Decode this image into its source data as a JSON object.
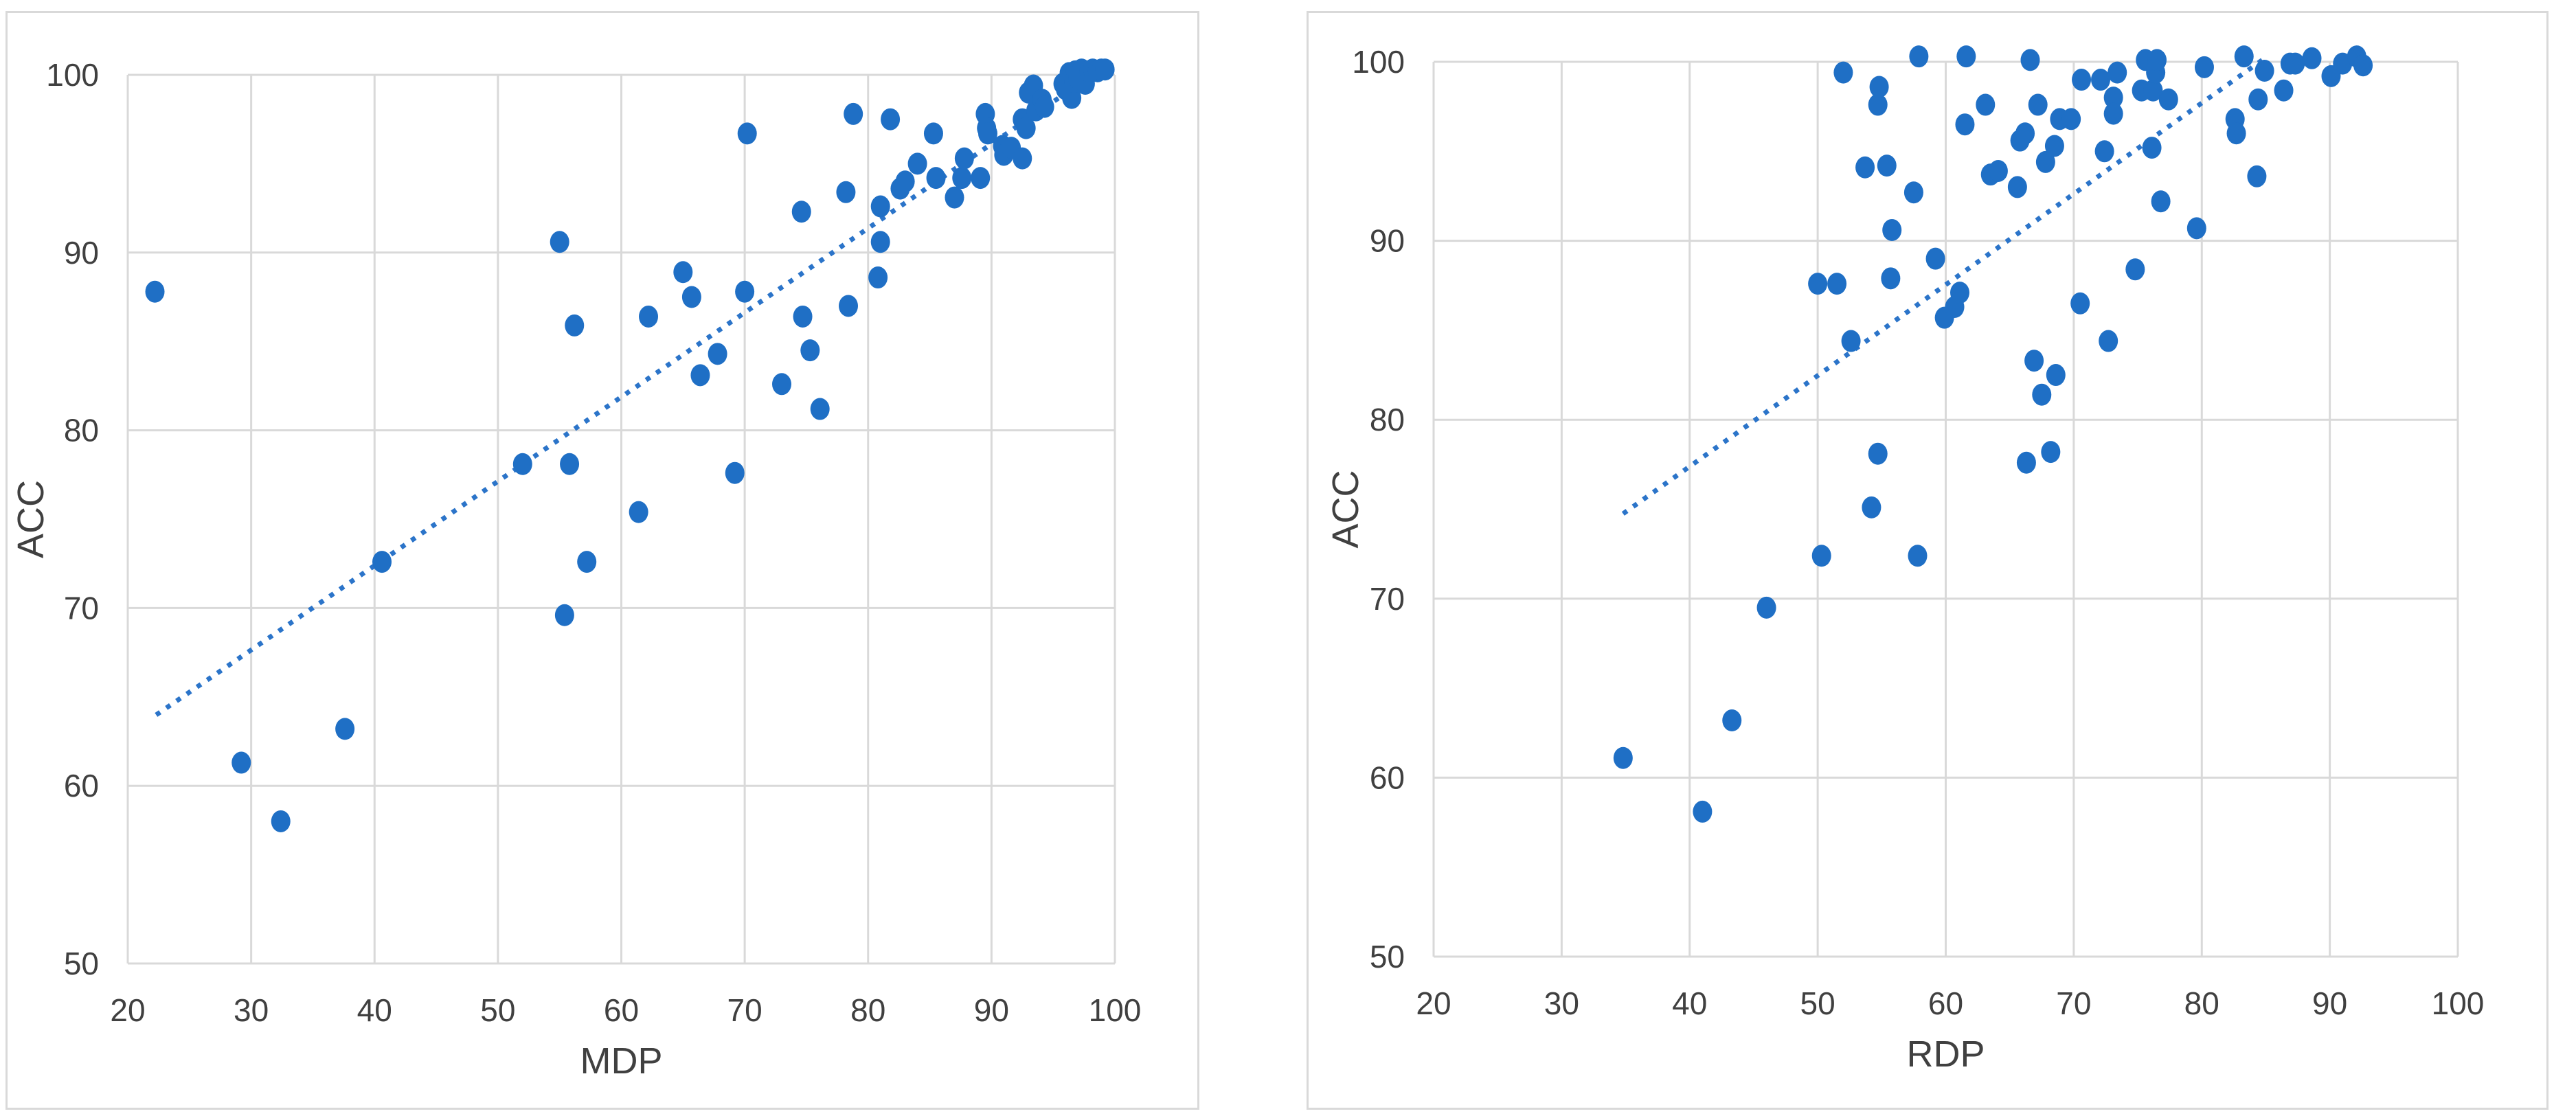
{
  "colors": {
    "marker": "#1f6fc5",
    "trendline": "#2b74c9",
    "grid": "#d9d9d9",
    "text": "#404040"
  },
  "chart_data": [
    {
      "type": "scatter",
      "title": "",
      "xlabel": "MDP",
      "ylabel": "ACC",
      "xlim": [
        20,
        100
      ],
      "ylim": [
        50,
        100
      ],
      "xticks": [
        "20",
        "30",
        "40",
        "50",
        "60",
        "70",
        "80",
        "90",
        "100"
      ],
      "yticks": [
        "50",
        "60",
        "70",
        "80",
        "90",
        "100"
      ],
      "grid": true,
      "legend": "none",
      "trendline": {
        "type": "linear",
        "style": "dotted",
        "x_range": [
          22.3,
          99.4
        ]
      },
      "points": [
        [
          22.2,
          87.8
        ],
        [
          29.2,
          61.3
        ],
        [
          32.4,
          58.0
        ],
        [
          37.6,
          63.2
        ],
        [
          40.6,
          72.6
        ],
        [
          52.0,
          78.1
        ],
        [
          55.0,
          90.6
        ],
        [
          55.4,
          69.6
        ],
        [
          55.8,
          78.1
        ],
        [
          56.2,
          85.9
        ],
        [
          57.2,
          72.6
        ],
        [
          61.4,
          75.4
        ],
        [
          62.2,
          86.4
        ],
        [
          65.0,
          88.9
        ],
        [
          65.7,
          87.5
        ],
        [
          66.4,
          83.1
        ],
        [
          67.8,
          84.3
        ],
        [
          69.2,
          77.6
        ],
        [
          70.0,
          87.8
        ],
        [
          70.2,
          96.7
        ],
        [
          73.0,
          82.6
        ],
        [
          74.6,
          92.3
        ],
        [
          74.7,
          86.4
        ],
        [
          75.3,
          84.5
        ],
        [
          76.1,
          81.2
        ],
        [
          78.2,
          93.4
        ],
        [
          78.4,
          87.0
        ],
        [
          78.8,
          97.8
        ],
        [
          80.8,
          88.6
        ],
        [
          81.0,
          92.6
        ],
        [
          81.0,
          90.6
        ],
        [
          81.8,
          97.5
        ],
        [
          82.6,
          93.6
        ],
        [
          83.0,
          94.0
        ],
        [
          84.0,
          95.0
        ],
        [
          85.3,
          96.7
        ],
        [
          85.5,
          94.2
        ],
        [
          87.0,
          93.1
        ],
        [
          87.6,
          94.2
        ],
        [
          87.8,
          95.3
        ],
        [
          89.1,
          94.2
        ],
        [
          89.5,
          97.8
        ],
        [
          89.6,
          97.0
        ],
        [
          89.7,
          96.7
        ],
        [
          90.9,
          96.0
        ],
        [
          91.0,
          95.5
        ],
        [
          91.6,
          95.9
        ],
        [
          92.5,
          95.3
        ],
        [
          92.5,
          97.5
        ],
        [
          92.8,
          97.0
        ],
        [
          93.0,
          99.0
        ],
        [
          93.4,
          99.4
        ],
        [
          93.6,
          98.0
        ],
        [
          94.1,
          98.6
        ],
        [
          94.3,
          98.2
        ],
        [
          95.8,
          99.5
        ],
        [
          96.0,
          99.2
        ],
        [
          96.3,
          100.1
        ],
        [
          96.5,
          98.7
        ],
        [
          96.7,
          99.6
        ],
        [
          96.8,
          100.2
        ],
        [
          97.0,
          99.8
        ],
        [
          97.3,
          100.3
        ],
        [
          97.6,
          99.5
        ],
        [
          97.9,
          100.2
        ],
        [
          98.2,
          100.3
        ],
        [
          98.6,
          100.2
        ],
        [
          98.9,
          100.3
        ],
        [
          99.2,
          100.3
        ]
      ]
    },
    {
      "type": "scatter",
      "title": "",
      "xlabel": "RDP",
      "ylabel": "ACC",
      "xlim": [
        20,
        100
      ],
      "ylim": [
        50,
        100
      ],
      "xticks": [
        "20",
        "30",
        "40",
        "50",
        "60",
        "70",
        "80",
        "90",
        "100"
      ],
      "yticks": [
        "50",
        "60",
        "70",
        "80",
        "90",
        "100"
      ],
      "grid": true,
      "legend": "none",
      "trendline": {
        "type": "linear",
        "style": "dotted",
        "x_range": [
          34.8,
          85.0
        ]
      },
      "points": [
        [
          34.8,
          61.1
        ],
        [
          41.0,
          58.1
        ],
        [
          43.3,
          63.2
        ],
        [
          46.0,
          69.5
        ],
        [
          50.0,
          87.6
        ],
        [
          50.3,
          72.4
        ],
        [
          51.5,
          87.6
        ],
        [
          52.0,
          99.4
        ],
        [
          52.6,
          84.4
        ],
        [
          53.7,
          94.1
        ],
        [
          54.2,
          75.1
        ],
        [
          54.7,
          78.1
        ],
        [
          54.7,
          97.6
        ],
        [
          54.8,
          98.6
        ],
        [
          55.4,
          94.2
        ],
        [
          55.7,
          87.9
        ],
        [
          55.8,
          90.6
        ],
        [
          57.5,
          92.7
        ],
        [
          57.8,
          72.4
        ],
        [
          57.9,
          100.3
        ],
        [
          59.2,
          89.0
        ],
        [
          59.9,
          85.7
        ],
        [
          60.7,
          86.3
        ],
        [
          61.1,
          87.1
        ],
        [
          61.5,
          96.5
        ],
        [
          61.6,
          100.3
        ],
        [
          63.1,
          97.6
        ],
        [
          63.5,
          93.7
        ],
        [
          64.1,
          93.9
        ],
        [
          65.6,
          93.0
        ],
        [
          65.8,
          95.6
        ],
        [
          66.2,
          96.0
        ],
        [
          66.3,
          77.6
        ],
        [
          66.6,
          100.1
        ],
        [
          66.9,
          83.3
        ],
        [
          67.2,
          97.6
        ],
        [
          67.5,
          81.4
        ],
        [
          67.8,
          94.4
        ],
        [
          68.2,
          78.2
        ],
        [
          68.5,
          95.3
        ],
        [
          68.6,
          82.5
        ],
        [
          68.9,
          96.8
        ],
        [
          69.8,
          96.8
        ],
        [
          70.5,
          86.5
        ],
        [
          70.6,
          99.0
        ],
        [
          72.1,
          99.0
        ],
        [
          72.4,
          95.0
        ],
        [
          72.7,
          84.4
        ],
        [
          73.1,
          98.0
        ],
        [
          73.1,
          97.1
        ],
        [
          73.4,
          99.4
        ],
        [
          74.8,
          88.4
        ],
        [
          75.3,
          98.4
        ],
        [
          75.6,
          100.1
        ],
        [
          76.1,
          95.2
        ],
        [
          76.2,
          98.4
        ],
        [
          76.4,
          99.4
        ],
        [
          76.5,
          100.1
        ],
        [
          76.8,
          92.2
        ],
        [
          77.4,
          97.9
        ],
        [
          79.6,
          90.7
        ],
        [
          80.2,
          99.7
        ],
        [
          82.6,
          96.8
        ],
        [
          82.7,
          96.0
        ],
        [
          83.3,
          100.3
        ],
        [
          84.3,
          93.6
        ],
        [
          84.4,
          97.9
        ],
        [
          84.9,
          99.5
        ],
        [
          86.4,
          98.4
        ],
        [
          86.9,
          99.9
        ],
        [
          87.3,
          99.9
        ],
        [
          88.6,
          100.2
        ],
        [
          90.1,
          99.2
        ],
        [
          91.0,
          99.9
        ],
        [
          92.1,
          100.3
        ],
        [
          92.6,
          99.8
        ]
      ]
    }
  ]
}
